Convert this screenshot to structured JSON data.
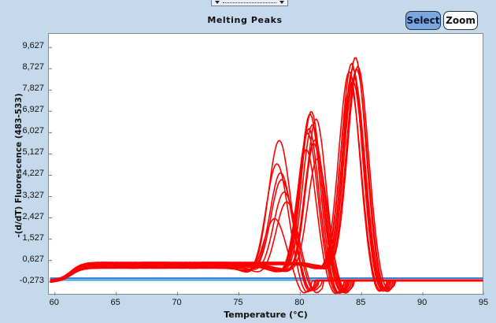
{
  "header": {
    "title": "Melting Peaks",
    "select_label": "Select",
    "zoom_label": "Zoom"
  },
  "colors": {
    "background": "#c5d9ec",
    "curve": "#ff0000",
    "baseline": "#2a7fd4",
    "select_button": "#7aa7dd"
  },
  "chart_data": {
    "type": "line",
    "xlabel": "Temperature (°C)",
    "ylabel": "-(d/dT) Fluorescence (483-533)",
    "xlim": [
      59.5,
      95
    ],
    "ylim": [
      -0.85,
      10.2
    ],
    "xticks": [
      "60",
      "65",
      "70",
      "75",
      "80",
      "85",
      "90",
      "95"
    ],
    "yticks": [
      "9,627",
      "8,727",
      "7,827",
      "6,927",
      "6,027",
      "5,127",
      "4,227",
      "3,327",
      "2,427",
      "1,527",
      "0,627",
      "-0,273"
    ],
    "ytick_values": [
      9.627,
      8.727,
      7.827,
      6.927,
      6.027,
      5.127,
      4.227,
      3.327,
      2.427,
      1.527,
      0.627,
      -0.273
    ],
    "grid": false,
    "groups": [
      {
        "color": "#ff0000",
        "peak_temps": [
          84.0,
          84.2,
          84.3,
          84.4,
          84.5,
          84.6,
          84.3,
          84.1,
          84.7
        ],
        "peak_heights": [
          8.8,
          9.2,
          9.0,
          8.6,
          9.4,
          8.9,
          8.4,
          8.2,
          9.1
        ],
        "width": 0.85,
        "plateau": 0.5
      },
      {
        "color": "#ff0000",
        "peak_temps": [
          80.6,
          80.8,
          81.0,
          81.2,
          80.9,
          81.1,
          80.7,
          81.3,
          80.5,
          81.4
        ],
        "peak_heights": [
          6.2,
          7.0,
          6.6,
          6.0,
          7.2,
          5.8,
          6.4,
          6.8,
          5.5,
          5.2
        ],
        "width": 0.8,
        "plateau": 0.4
      },
      {
        "color": "#ff0000",
        "peak_temps": [
          78.1,
          78.3,
          78.5,
          78.7,
          78.4,
          78.9,
          77.9
        ],
        "peak_heights": [
          4.9,
          5.9,
          4.3,
          3.8,
          4.6,
          3.3,
          2.6
        ],
        "width": 0.9,
        "plateau": 0.35
      }
    ],
    "baselines": [
      {
        "color": "#2a7fd4",
        "value": -0.12
      },
      {
        "color": "#38a0e0",
        "value": -0.2
      }
    ]
  }
}
